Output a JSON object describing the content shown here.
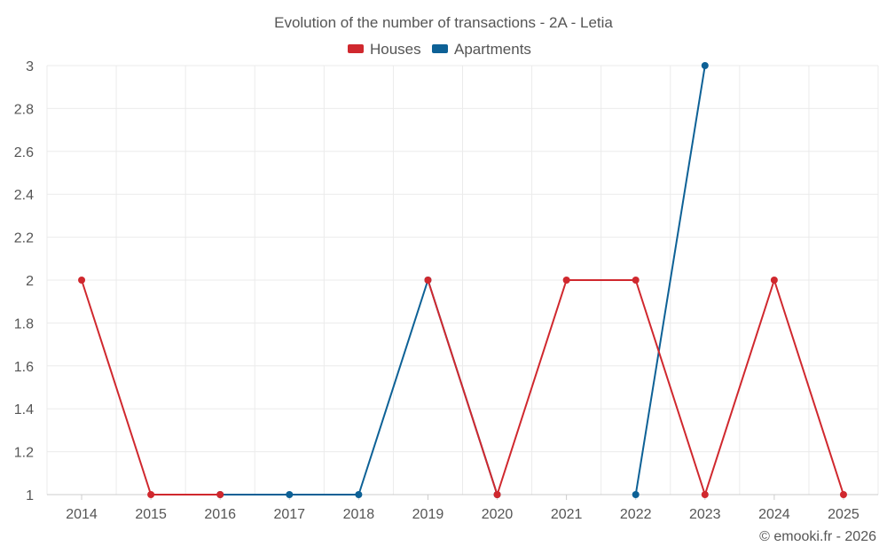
{
  "chart_data": {
    "type": "line",
    "title": "Evolution of the number of transactions - 2A - Letia",
    "categories": [
      "2014",
      "2015",
      "2016",
      "2017",
      "2018",
      "2019",
      "2020",
      "2021",
      "2022",
      "2023",
      "2024",
      "2025"
    ],
    "y_ticks": [
      "1",
      "1.2",
      "1.4",
      "1.6",
      "1.8",
      "2",
      "2.2",
      "2.4",
      "2.6",
      "2.8",
      "3"
    ],
    "ylim": [
      1,
      3
    ],
    "grid": true,
    "legend_position": "top-center",
    "series": [
      {
        "name": "Houses",
        "color": "#d0282e",
        "values": [
          2,
          1,
          1,
          null,
          null,
          2,
          1,
          2,
          2,
          1,
          2,
          1
        ]
      },
      {
        "name": "Apartments",
        "color": "#0d6196",
        "values": [
          null,
          null,
          1,
          1,
          1,
          2,
          1,
          null,
          1,
          3,
          null,
          null
        ]
      }
    ],
    "credit": "© emooki.fr - 2026"
  }
}
